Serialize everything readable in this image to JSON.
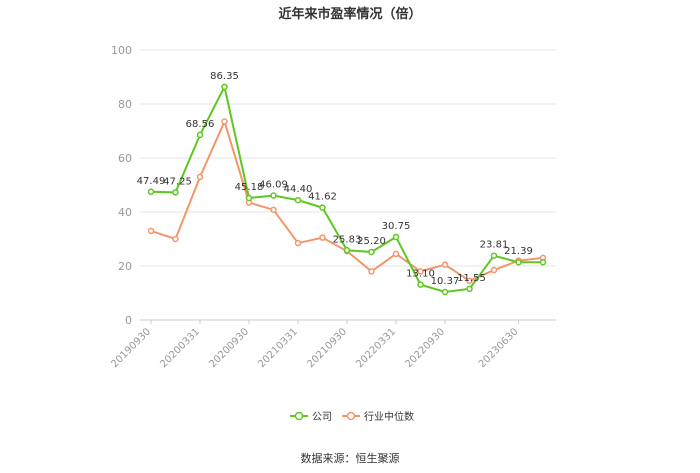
{
  "chart_data": {
    "type": "line",
    "title": "近年来市盈率情况（倍）",
    "xlabel": "",
    "ylabel": "",
    "ylim": [
      0,
      100
    ],
    "yticks": [
      0,
      20,
      40,
      60,
      80,
      100
    ],
    "grid": true,
    "legend_position": "bottom",
    "x": [
      "20190930",
      "20191231",
      "20200331",
      "20200630",
      "20200930",
      "20201231",
      "20210331",
      "20210630",
      "20210930",
      "20211231",
      "20220331",
      "20220630",
      "20220930",
      "20221231",
      "20230331",
      "20230630",
      "20230930"
    ],
    "x_tick_labels": [
      "20190930",
      "20200331",
      "20200930",
      "20210331",
      "20210930",
      "20220331",
      "20220930",
      "20230630"
    ],
    "series": [
      {
        "name": "公司",
        "color": "#5ec722",
        "values": [
          47.49,
          47.25,
          68.56,
          86.35,
          45.18,
          46.09,
          44.4,
          41.62,
          25.83,
          25.2,
          30.75,
          13.1,
          10.37,
          11.55,
          23.81,
          21.39,
          21.39
        ],
        "labels": [
          "47.49",
          "47.25",
          "68.56",
          "86.35",
          "45.18",
          "46.09",
          "44.40",
          "41.62",
          "25.83",
          "25.20",
          "30.75",
          "13.10",
          "10.37",
          "11.55",
          "23.81",
          "21.39",
          null
        ]
      },
      {
        "name": "行业中位数",
        "color": "#f4956b",
        "values": [
          33.0,
          30.0,
          53.0,
          73.5,
          43.5,
          40.8,
          28.5,
          30.5,
          25.5,
          18.0,
          24.5,
          18.0,
          20.5,
          14.5,
          18.5,
          22.0,
          23.0
        ]
      }
    ]
  },
  "source_text": "数据来源：恒生聚源"
}
